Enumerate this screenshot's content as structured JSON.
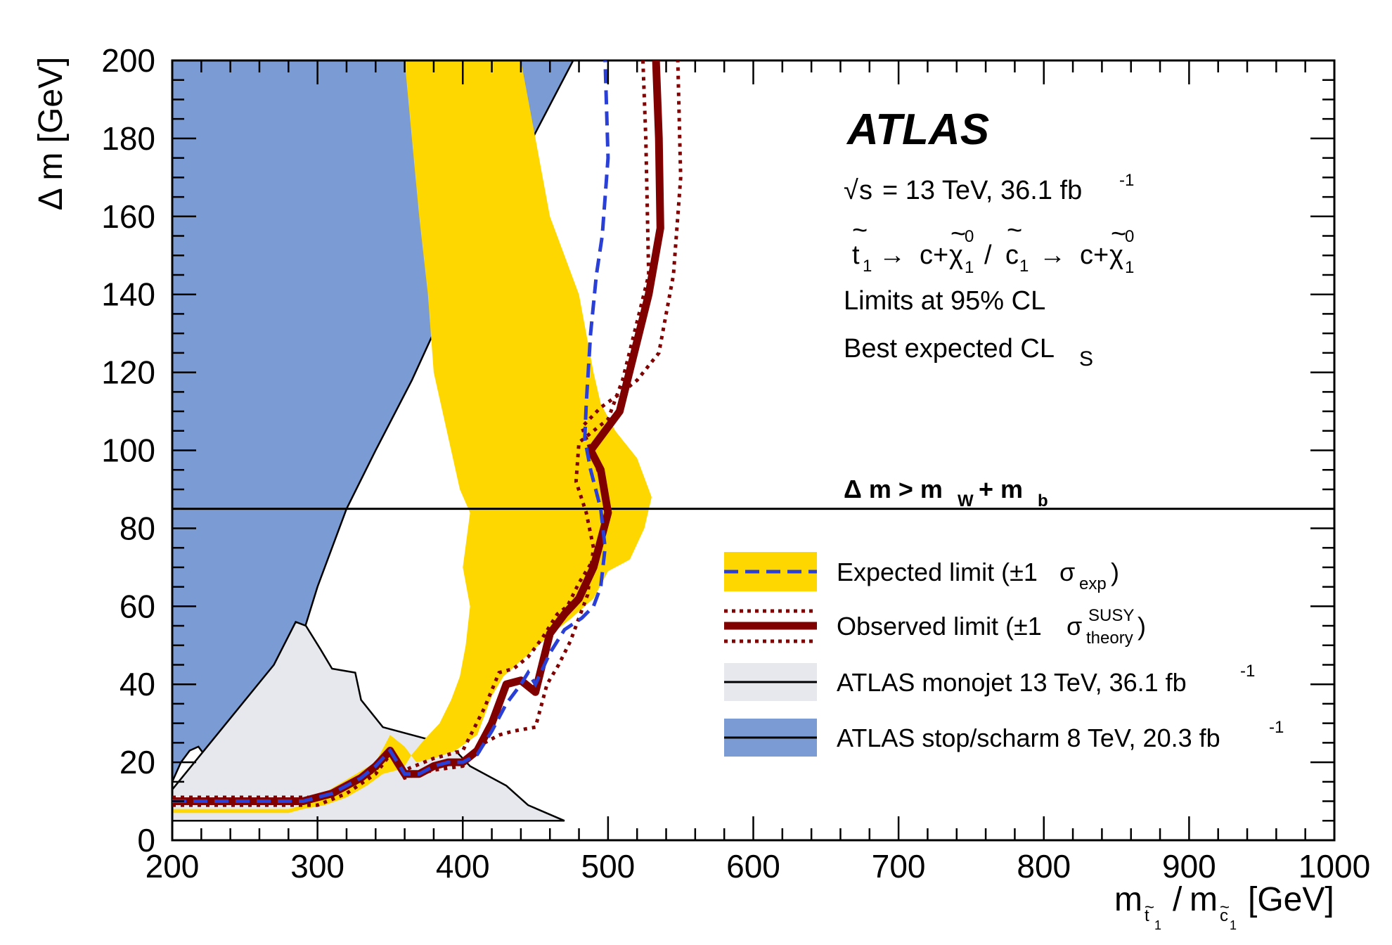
{
  "chart_data": {
    "type": "area",
    "xlim": [
      200,
      1000
    ],
    "ylim": [
      0,
      200
    ],
    "x_ticks": [
      "200",
      "300",
      "400",
      "500",
      "600",
      "700",
      "800",
      "900",
      "1000"
    ],
    "y_ticks": [
      "0",
      "20",
      "40",
      "60",
      "80",
      "100",
      "120",
      "140",
      "160",
      "180",
      "200"
    ],
    "ylabel": "Δ m [GeV]",
    "xlabel_parts": {
      "m": "m",
      "t": "t",
      "one": "1",
      "slash": "/",
      "c": "c",
      "unit": "[GeV]",
      "tilde": "~"
    },
    "atlas": "ATLAS",
    "info": {
      "line1_root": "√",
      "line1_s": "s",
      "line1_rest": "= 13 TeV, 36.1 fb",
      "line1_sup": "-1",
      "line2_t": "t",
      "line2_tilde": "~",
      "line2_1": "1",
      "line2_arrow": "→",
      "line2_c": "c+",
      "line2_chi": "χ",
      "line2_0": "0",
      "line2_slash": "/",
      "line2_c1": "c",
      "line3": "Limits at 95% CL",
      "line4": "Best expected CL",
      "line4_sub": "S"
    },
    "threshold": {
      "y": 85,
      "label_main": "Δ m > m",
      "label_W": "W",
      "label_plus": "+ m",
      "label_b": "b"
    },
    "legend": [
      {
        "text": "Expected limit (±1",
        "sigma": "σ",
        "sub": "exp",
        "close": ")"
      },
      {
        "text": "Observed limit (±1",
        "sigma": "σ",
        "sup": "SUSY",
        "sub": "theory",
        "close": ")"
      },
      {
        "text": "ATLAS monojet 13 TeV, 36.1 fb",
        "sup": "-1"
      },
      {
        "text": "ATLAS stop/scharm 8 TeV, 20.3 fb",
        "sup": "-1"
      }
    ],
    "colors": {
      "yellow": "#ffd700",
      "blue_fill": "#7b9bd5",
      "grey_fill": "#e6e8ee",
      "observed": "#800000",
      "expected": "#2a3fd6",
      "black": "#000000"
    },
    "series": {
      "stop_scharm_8tev": [
        [
          200,
          15
        ],
        [
          206,
          20
        ],
        [
          212,
          23
        ],
        [
          218,
          24
        ],
        [
          224,
          21
        ],
        [
          228,
          19
        ],
        [
          234,
          24
        ],
        [
          240,
          26
        ],
        [
          246,
          28
        ],
        [
          252,
          28
        ],
        [
          257,
          30
        ],
        [
          262,
          29
        ],
        [
          266,
          31
        ],
        [
          274,
          37
        ],
        [
          282,
          45
        ],
        [
          290,
          53
        ],
        [
          300,
          65
        ],
        [
          320,
          85
        ],
        [
          340,
          100
        ],
        [
          365,
          118
        ],
        [
          392,
          140
        ],
        [
          420,
          160
        ],
        [
          448,
          180
        ],
        [
          476,
          200
        ],
        [
          200,
          200
        ]
      ],
      "monojet_13tev": [
        [
          200,
          5
        ],
        [
          200,
          13
        ],
        [
          270,
          45
        ],
        [
          285,
          56
        ],
        [
          292,
          55
        ],
        [
          302,
          49
        ],
        [
          310,
          44
        ],
        [
          326,
          43
        ],
        [
          330,
          36
        ],
        [
          345,
          29
        ],
        [
          375,
          26
        ],
        [
          395,
          23
        ],
        [
          405,
          19
        ],
        [
          430,
          14
        ],
        [
          445,
          9
        ],
        [
          470,
          5
        ]
      ],
      "expected_band": [
        [
          200,
          8
        ],
        [
          280,
          8
        ],
        [
          290,
          9
        ],
        [
          304,
          12
        ],
        [
          322,
          16
        ],
        [
          340,
          20
        ],
        [
          350,
          27
        ],
        [
          360,
          24
        ],
        [
          368,
          20
        ],
        [
          380,
          21
        ],
        [
          395,
          23
        ],
        [
          410,
          27
        ],
        [
          415,
          32
        ],
        [
          420,
          37
        ],
        [
          428,
          42
        ],
        [
          440,
          46
        ],
        [
          458,
          52
        ],
        [
          475,
          57
        ],
        [
          490,
          62
        ],
        [
          500,
          69
        ],
        [
          515,
          72
        ],
        [
          525,
          80
        ],
        [
          530,
          88
        ],
        [
          520,
          98
        ],
        [
          505,
          105
        ],
        [
          495,
          112
        ],
        [
          490,
          120
        ],
        [
          480,
          140
        ],
        [
          460,
          160
        ],
        [
          450,
          180
        ],
        [
          440,
          200
        ],
        [
          360,
          200
        ],
        [
          365,
          180
        ],
        [
          370,
          160
        ],
        [
          376,
          140
        ],
        [
          380,
          120
        ],
        [
          386,
          110
        ],
        [
          392,
          100
        ],
        [
          398,
          90
        ],
        [
          405,
          84
        ],
        [
          400,
          70
        ],
        [
          405,
          60
        ],
        [
          402,
          50
        ],
        [
          398,
          42
        ],
        [
          392,
          36
        ],
        [
          384,
          30
        ],
        [
          374,
          26
        ],
        [
          365,
          22
        ],
        [
          360,
          19
        ],
        [
          355,
          18
        ],
        [
          345,
          17
        ],
        [
          334,
          14
        ],
        [
          320,
          11
        ],
        [
          305,
          9
        ],
        [
          290,
          8
        ],
        [
          280,
          7
        ],
        [
          200,
          7
        ]
      ],
      "expected": [
        [
          200,
          10
        ],
        [
          290,
          10
        ],
        [
          310,
          12
        ],
        [
          330,
          16
        ],
        [
          340,
          19
        ],
        [
          350,
          23
        ],
        [
          360,
          17
        ],
        [
          370,
          17
        ],
        [
          380,
          19
        ],
        [
          390,
          20
        ],
        [
          400,
          20
        ],
        [
          410,
          22
        ],
        [
          420,
          28
        ],
        [
          430,
          35
        ],
        [
          440,
          40
        ],
        [
          445,
          43
        ],
        [
          450,
          40
        ],
        [
          460,
          48
        ],
        [
          470,
          54
        ],
        [
          482,
          57
        ],
        [
          490,
          60
        ],
        [
          495,
          65
        ],
        [
          498,
          75
        ],
        [
          495,
          85
        ],
        [
          488,
          95
        ],
        [
          484,
          103
        ],
        [
          485,
          112
        ],
        [
          488,
          130
        ],
        [
          492,
          145
        ],
        [
          496,
          155
        ],
        [
          500,
          175
        ],
        [
          498,
          200
        ]
      ],
      "observed": [
        [
          200,
          10
        ],
        [
          290,
          10
        ],
        [
          310,
          12
        ],
        [
          330,
          16
        ],
        [
          340,
          19
        ],
        [
          350,
          23
        ],
        [
          360,
          17
        ],
        [
          370,
          17
        ],
        [
          380,
          19
        ],
        [
          390,
          20
        ],
        [
          400,
          20
        ],
        [
          410,
          23
        ],
        [
          420,
          30
        ],
        [
          430,
          40
        ],
        [
          440,
          41
        ],
        [
          450,
          38
        ],
        [
          460,
          53
        ],
        [
          470,
          58
        ],
        [
          480,
          62
        ],
        [
          490,
          70
        ],
        [
          500,
          84
        ],
        [
          495,
          95
        ],
        [
          488,
          100
        ],
        [
          498,
          105
        ],
        [
          508,
          110
        ],
        [
          518,
          125
        ],
        [
          528,
          140
        ],
        [
          536,
          157
        ],
        [
          535,
          180
        ],
        [
          533,
          200
        ]
      ],
      "observed_plus": [
        [
          200,
          11
        ],
        [
          300,
          11
        ],
        [
          320,
          14
        ],
        [
          340,
          18
        ],
        [
          350,
          23
        ],
        [
          360,
          18
        ],
        [
          380,
          21
        ],
        [
          400,
          23
        ],
        [
          415,
          34
        ],
        [
          425,
          43
        ],
        [
          435,
          44
        ],
        [
          445,
          47
        ],
        [
          455,
          52
        ],
        [
          465,
          58
        ],
        [
          472,
          60
        ],
        [
          480,
          66
        ],
        [
          490,
          72
        ],
        [
          500,
          82
        ],
        [
          498,
          90
        ],
        [
          490,
          98
        ],
        [
          482,
          106
        ],
        [
          495,
          111
        ],
        [
          510,
          115
        ],
        [
          520,
          118
        ],
        [
          535,
          125
        ],
        [
          545,
          145
        ],
        [
          550,
          170
        ],
        [
          548,
          200
        ]
      ],
      "observed_minus": [
        [
          200,
          9
        ],
        [
          300,
          9
        ],
        [
          320,
          12
        ],
        [
          340,
          17
        ],
        [
          350,
          22
        ],
        [
          360,
          16
        ],
        [
          380,
          18
        ],
        [
          400,
          19
        ],
        [
          415,
          25
        ],
        [
          425,
          27
        ],
        [
          435,
          28
        ],
        [
          450,
          29
        ],
        [
          458,
          40
        ],
        [
          466,
          45
        ],
        [
          474,
          51
        ],
        [
          480,
          57
        ],
        [
          486,
          63
        ],
        [
          490,
          75
        ],
        [
          485,
          84
        ],
        [
          478,
          92
        ],
        [
          480,
          102
        ],
        [
          490,
          105
        ],
        [
          500,
          108
        ],
        [
          510,
          118
        ],
        [
          518,
          130
        ],
        [
          528,
          145
        ],
        [
          526,
          180
        ],
        [
          524,
          200
        ]
      ]
    }
  }
}
